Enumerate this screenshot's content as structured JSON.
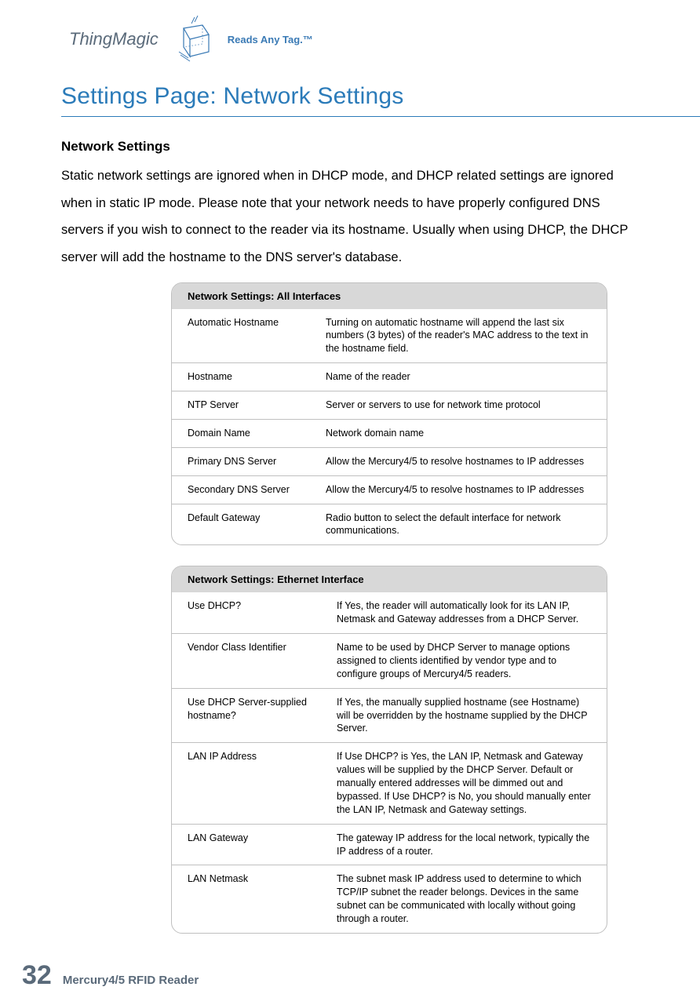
{
  "header": {
    "brand": "ThingMagic",
    "tagline": "Reads Any Tag.™",
    "logo_color": "#3a7ab5"
  },
  "page": {
    "title": "Settings Page: Network Settings",
    "title_color": "#2b7bb9",
    "rule_color": "#2b7bb9"
  },
  "section": {
    "heading": "Network Settings",
    "intro": "Static network settings are ignored when in DHCP mode, and DHCP related settings are ignored when in static IP mode.  Please note that your network needs to have properly configured DNS servers if you wish to connect to the reader via its hostname.  Usually when using DHCP, the DHCP server will add the hostname to the DNS server's database."
  },
  "table1": {
    "title": "Network Settings: All Interfaces",
    "header_bg": "#d8d8d8",
    "border_color": "#c0c0c0",
    "rows": [
      {
        "label": "Automatic Hostname",
        "desc": "Turning on automatic hostname will append the last six numbers (3 bytes) of the reader's MAC address to the text in the hostname field."
      },
      {
        "label": "Hostname",
        "desc": "Name of the reader"
      },
      {
        "label": "NTP Server",
        "desc": "Server or servers to use for network time protocol"
      },
      {
        "label": "Domain Name",
        "desc": "Network domain name"
      },
      {
        "label": "Primary DNS Server",
        "desc": "Allow the Mercury4/5 to resolve hostnames to IP addresses"
      },
      {
        "label": "Secondary DNS Server",
        "desc": "Allow the Mercury4/5 to resolve hostnames to IP addresses"
      },
      {
        "label": "Default Gateway",
        "desc": "Radio button to select the default interface for network communications."
      }
    ]
  },
  "table2": {
    "title": "Network Settings: Ethernet Interface",
    "header_bg": "#d8d8d8",
    "border_color": "#c0c0c0",
    "rows": [
      {
        "label": "Use DHCP?",
        "desc": "If Yes, the reader will automatically look for its LAN IP, Netmask and Gateway addresses from a DHCP Server."
      },
      {
        "label": "Vendor Class Identifier",
        "desc": "Name to be used by DHCP Server to manage options assigned to clients identified by vendor type and to configure groups of Mercury4/5 readers."
      },
      {
        "label": "Use DHCP Server-supplied hostname?",
        "desc": "If Yes, the manually supplied hostname (see Hostname) will be overridden by the hostname supplied by the DHCP Server."
      },
      {
        "label": "LAN IP Address",
        "desc": "If Use DHCP? is Yes, the LAN IP, Netmask and Gateway values will be supplied by the DHCP Server. Default or manually entered addresses will be dimmed out and bypassed. If Use DHCP? is No, you should manually enter the LAN IP, Netmask and Gateway settings."
      },
      {
        "label": "LAN Gateway",
        "desc": "The gateway IP address for the local network, typically the IP address of a router."
      },
      {
        "label": "LAN Netmask",
        "desc": "The subnet mask IP address used to determine to which TCP/IP subnet the reader belongs. Devices in the same subnet can be communicated with locally without going through a router."
      }
    ]
  },
  "footer": {
    "page_number": "32",
    "text": "Mercury4/5 RFID Reader",
    "color": "#5a6a7a"
  }
}
